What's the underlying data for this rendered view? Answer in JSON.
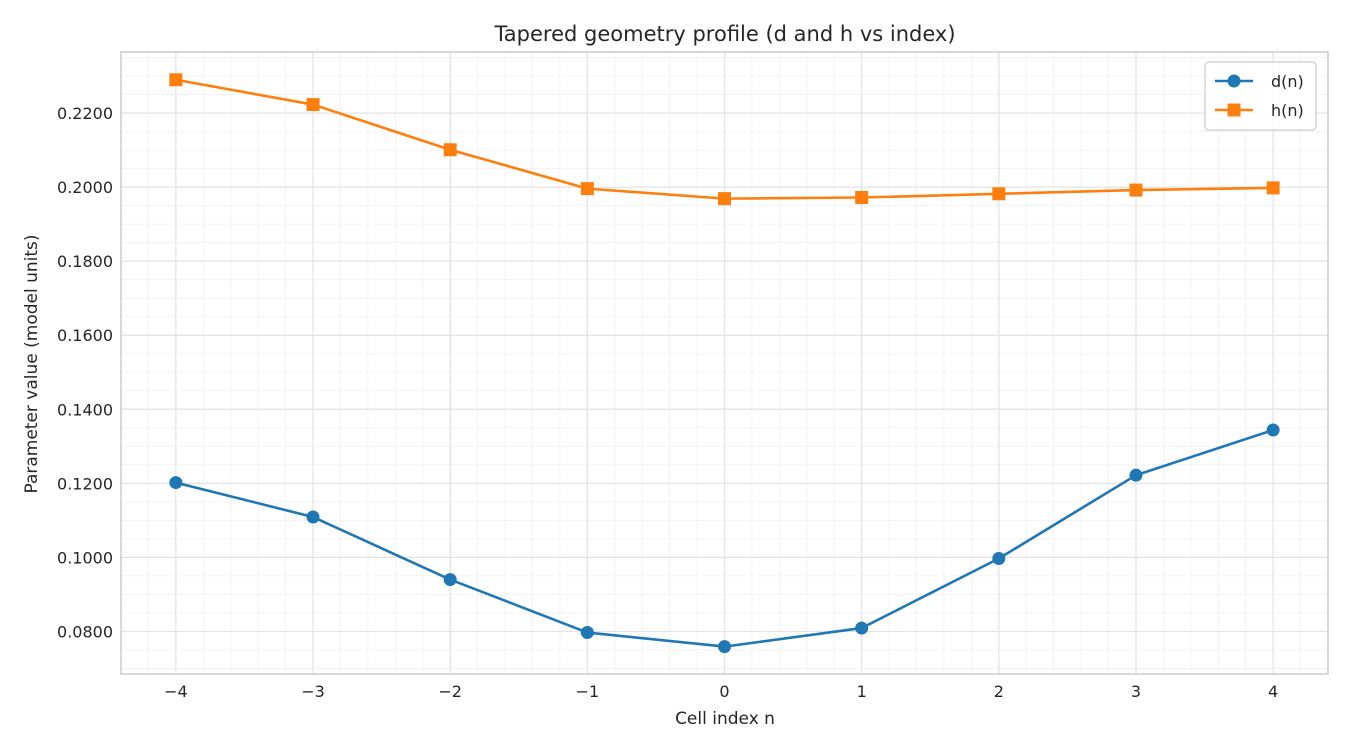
{
  "chart_data": {
    "type": "line",
    "title": "Tapered geometry profile (d and h vs index)",
    "xlabel": "Cell index n",
    "ylabel": "Parameter value (model units)",
    "x": [
      -4,
      -3,
      -2,
      -1,
      0,
      1,
      2,
      3,
      4
    ],
    "x_tick_labels": [
      "−4",
      "−3",
      "−2",
      "−1",
      "0",
      "1",
      "2",
      "3",
      "4"
    ],
    "xlim": [
      -4.4,
      4.4
    ],
    "ylim": [
      0.0685,
      0.2365
    ],
    "y_ticks": [
      0.08,
      0.1,
      0.12,
      0.14,
      0.16,
      0.18,
      0.2,
      0.22
    ],
    "y_tick_labels": [
      "0.0800",
      "0.1000",
      "0.1200",
      "0.1400",
      "0.1600",
      "0.1800",
      "0.2000",
      "0.2200"
    ],
    "grid": true,
    "legend_position": "top-right",
    "series": [
      {
        "name": "d(n)",
        "marker": "circle",
        "color": "#1f77b4",
        "values": [
          0.1202,
          0.1109,
          0.094,
          0.0797,
          0.0759,
          0.0809,
          0.0997,
          0.1222,
          0.1344
        ]
      },
      {
        "name": "h(n)",
        "marker": "square",
        "color": "#ff7f0e",
        "values": [
          0.229,
          0.2223,
          0.2101,
          0.1996,
          0.1969,
          0.1972,
          0.1982,
          0.1992,
          0.1998
        ]
      }
    ]
  }
}
